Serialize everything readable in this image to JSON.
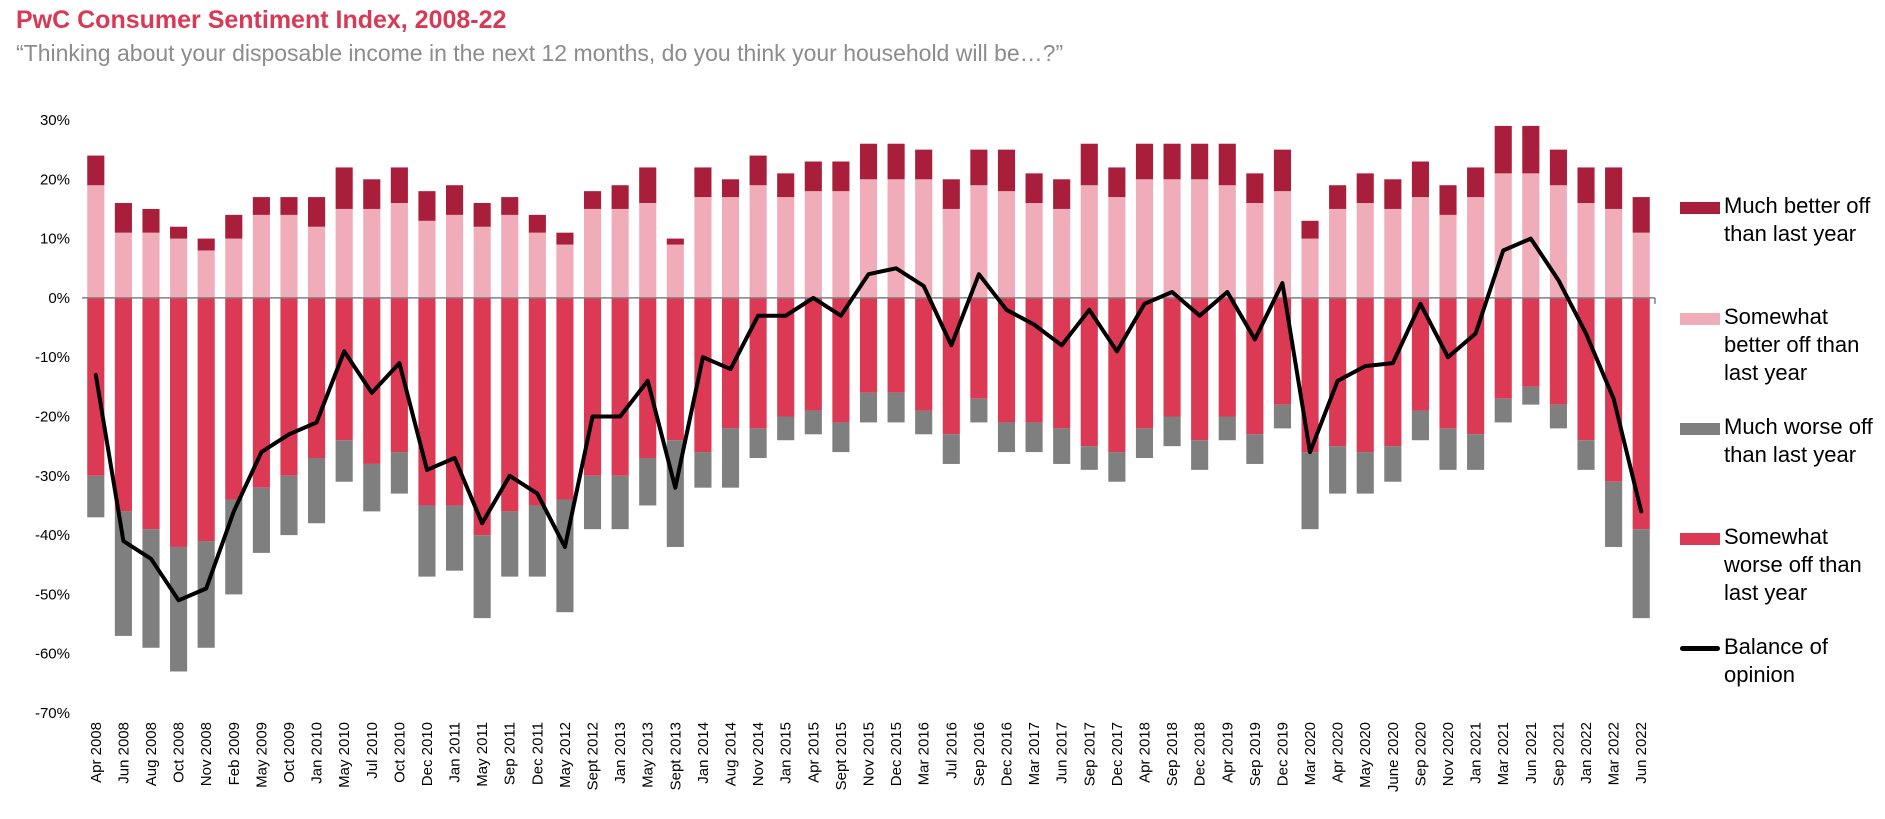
{
  "title": "PwC Consumer Sentiment Index, 2008-22",
  "subtitle": "“Thinking about your disposable income in the next 12 months, do you think your household will be…?”",
  "chart_data": {
    "type": "bar",
    "stacked": true,
    "ylim": [
      -70,
      30
    ],
    "yticks": [
      "30%",
      "20%",
      "10%",
      "0%",
      "-10%",
      "-20%",
      "-30%",
      "-40%",
      "-50%",
      "-60%",
      "-70%"
    ],
    "ytick_values": [
      30,
      20,
      10,
      0,
      -10,
      -20,
      -30,
      -40,
      -50,
      -60,
      -70
    ],
    "legend_placement": "right",
    "grid": false,
    "categories": [
      "Apr 2008",
      "Jun 2008",
      "Aug 2008",
      "Oct 2008",
      "Nov 2008",
      "Feb 2009",
      "May 2009",
      "Oct 2009",
      "Jan 2010",
      "May 2010",
      "Jul 2010",
      "Oct 2010",
      "Dec 2010",
      "Jan 2011",
      "May 2011",
      "Sep 2011",
      "Dec 2011",
      "May 2012",
      "Sept 2012",
      "Jan 2013",
      "May 2013",
      "Sept 2013",
      "Jan 2014",
      "Aug 2014",
      "Nov 2014",
      "Jan 2015",
      "Apr 2015",
      "Sept 2015",
      "Nov 2015",
      "Dec 2015",
      "Mar 2016",
      "Jul 2016",
      "Sep 2016",
      "Dec 2016",
      "Mar 2017",
      "Jun 2017",
      "Sep 2017",
      "Dec 2017",
      "Apr 2018",
      "Sep 2018",
      "Dec 2018",
      "Apr 2019",
      "Sep 2019",
      "Dec 2019",
      "Mar 2020",
      "Apr 2020",
      "May 2020",
      "June 2020",
      "Sep 2020",
      "Nov 2020",
      "Jan 2021",
      "Mar 2021",
      "Jun 2021",
      "Sep 2021",
      "Jan 2022",
      "Mar 2022",
      "Jun 2022"
    ],
    "series": [
      {
        "name": "Much better off than last year",
        "color": "#a91e3b",
        "type": "bar",
        "values": [
          5,
          5,
          4,
          2,
          2,
          4,
          3,
          3,
          5,
          7,
          5,
          6,
          5,
          5,
          4,
          3,
          3,
          2,
          3,
          4,
          6,
          1,
          5,
          3,
          5,
          4,
          5,
          5,
          6,
          6,
          5,
          5,
          6,
          7,
          5,
          5,
          7,
          5,
          6,
          6,
          6,
          7,
          5,
          7,
          3,
          4,
          5,
          5,
          6,
          5,
          5,
          8,
          8,
          6,
          6,
          7,
          6
        ]
      },
      {
        "name": "Somewhat better off than last year",
        "color": "#f0adb9",
        "type": "bar",
        "values": [
          19,
          11,
          11,
          10,
          8,
          10,
          14,
          14,
          12,
          15,
          15,
          16,
          13,
          14,
          12,
          14,
          11,
          9,
          15,
          15,
          16,
          9,
          17,
          17,
          19,
          17,
          18,
          18,
          20,
          20,
          20,
          15,
          19,
          18,
          16,
          15,
          19,
          17,
          20,
          20,
          20,
          19,
          16,
          18,
          10,
          15,
          16,
          15,
          17,
          14,
          17,
          21,
          21,
          19,
          16,
          15,
          11
        ]
      },
      {
        "name": "Much worse off than last year",
        "color": "#7f7f7f",
        "type": "bar",
        "values": [
          -7,
          -21,
          -20,
          -21,
          -18,
          -16,
          -11,
          -10,
          -11,
          -7,
          -8,
          -7,
          -12,
          -11,
          -14,
          -11,
          -12,
          -19,
          -9,
          -9,
          -8,
          -18,
          -6,
          -10,
          -5,
          -4,
          -4,
          -5,
          -5,
          -5,
          -4,
          -5,
          -4,
          -5,
          -5,
          -6,
          -4,
          -5,
          -5,
          -5,
          -5,
          -4,
          -5,
          -4,
          -13,
          -8,
          -7,
          -6,
          -5,
          -7,
          -6,
          -4,
          -3,
          -4,
          -5,
          -11,
          -15
        ]
      },
      {
        "name": "Somewhat worse off than last year",
        "color": "#dc3955",
        "type": "bar",
        "values": [
          -30,
          -36,
          -39,
          -42,
          -41,
          -34,
          -32,
          -30,
          -27,
          -24,
          -28,
          -26,
          -35,
          -35,
          -40,
          -36,
          -35,
          -34,
          -30,
          -30,
          -27,
          -24,
          -26,
          -22,
          -22,
          -20,
          -19,
          -21,
          -16,
          -16,
          -19,
          -23,
          -17,
          -21,
          -21,
          -22,
          -25,
          -26,
          -22,
          -20,
          -24,
          -20,
          -23,
          -18,
          -26,
          -25,
          -26,
          -25,
          -19,
          -22,
          -23,
          -17,
          -15,
          -18,
          -24,
          -31,
          -39
        ]
      },
      {
        "name": "Balance of opinion",
        "color": "#000000",
        "type": "line",
        "values": [
          -13,
          -41,
          -44,
          -51,
          -49,
          -36,
          -26,
          -23,
          -21,
          -9,
          -16,
          -11,
          -29,
          -27,
          -38,
          -30,
          -33,
          -42,
          -20,
          -20,
          -14,
          -32,
          -10,
          -12,
          -3,
          -3,
          0,
          -3,
          4,
          5,
          2,
          -8,
          4,
          -2,
          -4.5,
          -8,
          -2,
          -9,
          -1,
          1,
          -3,
          1,
          -7,
          2.5,
          -26,
          -14,
          -11.5,
          -11,
          -1,
          -10,
          -6,
          8,
          10,
          3,
          -6,
          -17,
          -36
        ]
      }
    ]
  }
}
